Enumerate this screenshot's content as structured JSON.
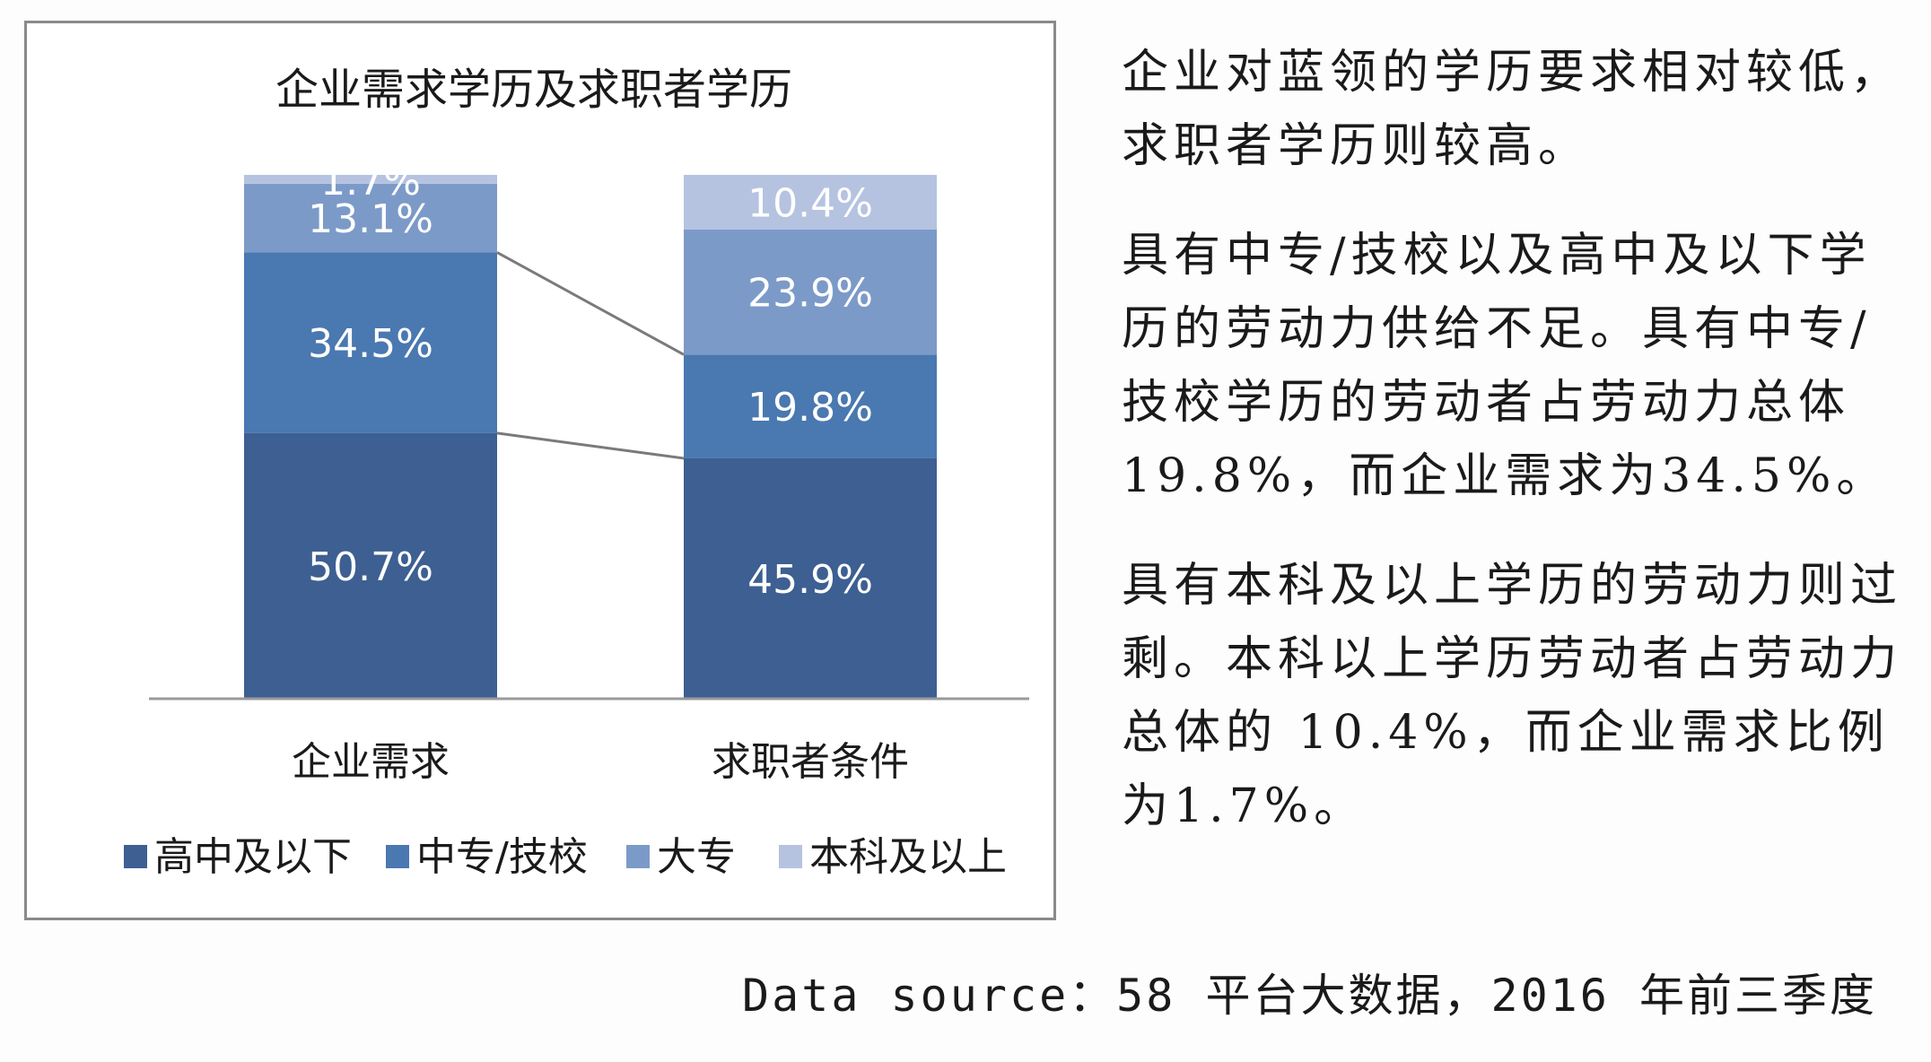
{
  "chart_data": {
    "type": "bar",
    "stacked": true,
    "title": "企业需求学历及求职者学历",
    "categories": [
      "企业需求",
      "求职者条件"
    ],
    "series": [
      {
        "name": "高中及以下",
        "values": [
          50.7,
          45.9
        ],
        "labels": [
          "50.7%",
          "45.9%"
        ],
        "color": "#3d5f92"
      },
      {
        "name": "中专/技校",
        "values": [
          34.5,
          19.8
        ],
        "labels": [
          "34.5%",
          "19.8%"
        ],
        "color": "#4a78b0"
      },
      {
        "name": "大专",
        "values": [
          13.1,
          23.9
        ],
        "labels": [
          "13.1%",
          "23.9%"
        ],
        "color": "#7c9ac8"
      },
      {
        "name": "本科及以上",
        "values": [
          1.7,
          10.4
        ],
        "labels": [
          "1.7%",
          "10.4%"
        ],
        "color": "#b5c3e0"
      }
    ],
    "ylim": [
      0,
      100
    ],
    "grid": false,
    "legend": "bottom",
    "connector_lines": true
  },
  "text": {
    "paragraphs": [
      "企业对蓝领的学历要求相对较低，求职者学历则较高。",
      "具有中专/技校以及高中及以下学历的劳动力供给不足。具有中专/技校学历的劳动者占劳动力总体19.8%，而企业需求为34.5%。",
      "具有本科及以上学历的劳动力则过剩。本科以上学历劳动者占劳动力总体的 10.4%，而企业需求比例为1.7%。"
    ]
  },
  "source": "Data source：58 平台大数据，2016 年前三季度"
}
